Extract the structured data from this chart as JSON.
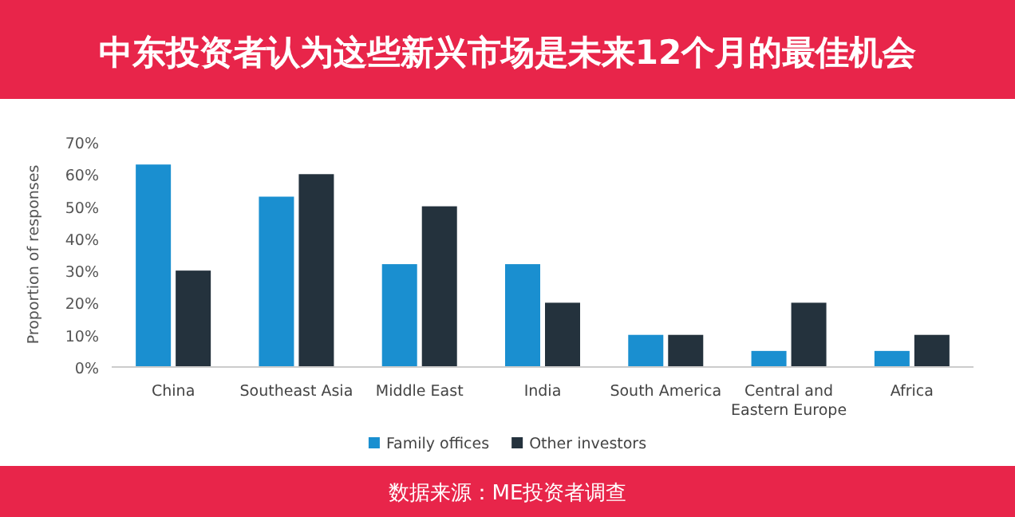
{
  "chart_data": {
    "type": "bar",
    "title": "中东投资者认为这些新兴市场是未来12个月的最佳机会",
    "ylabel": "Proportion of responses",
    "categories": [
      "China",
      "Southeast Asia",
      "Middle East",
      "India",
      "South America",
      "Central and Eastern Europe",
      "Africa"
    ],
    "series": [
      {
        "name": "Family offices",
        "color": "#1a8fd0",
        "values": [
          63,
          53,
          32,
          32,
          10,
          5,
          5
        ]
      },
      {
        "name": "Other investors",
        "color": "#24323d",
        "values": [
          30,
          60,
          50,
          20,
          10,
          20,
          10
        ]
      }
    ],
    "ylim": [
      0,
      70
    ],
    "yticks": [
      {
        "value": 0,
        "label": "0%"
      },
      {
        "value": 10,
        "label": "10%"
      },
      {
        "value": 20,
        "label": "20%"
      },
      {
        "value": 30,
        "label": "30%"
      },
      {
        "value": 40,
        "label": "40%"
      },
      {
        "value": 50,
        "label": "50%"
      },
      {
        "value": 60,
        "label": "60%"
      },
      {
        "value": 70,
        "label": "70%"
      }
    ],
    "legend": "bottom",
    "annotations": [
      "数据来源：ME投资者调查"
    ]
  }
}
